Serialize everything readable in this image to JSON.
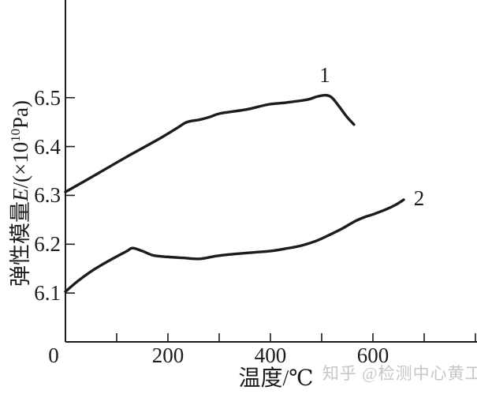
{
  "watermark": "知乎 @检测中心黄工",
  "line_color": "#1c1c1c",
  "watermark_color": "#c6c6c6",
  "chart_data": {
    "type": "line",
    "title": "",
    "xlabel": "温度/℃",
    "ylabel": "弹性模量E/(×10¹⁰Pa)",
    "ylabel_parts": {
      "prefix": "弹性模量",
      "variable": "E",
      "mid": "/(×10",
      "sup": "10",
      "suffix": "Pa)"
    },
    "xlim": [
      0,
      800
    ],
    "ylim": [
      6.0,
      6.7
    ],
    "grid": false,
    "legend": "inline numeric labels at curve ends",
    "x_tick_marks": [
      100,
      200,
      300,
      400,
      500,
      600,
      700,
      800
    ],
    "x_tick_labels": [
      {
        "value": 0,
        "label": "0"
      },
      {
        "value": 200,
        "label": "200"
      },
      {
        "value": 400,
        "label": "400"
      },
      {
        "value": 600,
        "label": "600"
      }
    ],
    "y_ticks": [
      {
        "value": 6.1,
        "label": "6.1"
      },
      {
        "value": 6.2,
        "label": "6.2"
      },
      {
        "value": 6.3,
        "label": "6.3"
      },
      {
        "value": 6.4,
        "label": "6.4"
      },
      {
        "value": 6.5,
        "label": "6.5"
      }
    ],
    "series": [
      {
        "name": "1",
        "label_x": 506,
        "label_y": 6.547,
        "points": [
          [
            0,
            6.307
          ],
          [
            57,
            6.341
          ],
          [
            118,
            6.378
          ],
          [
            180,
            6.414
          ],
          [
            218,
            6.438
          ],
          [
            237,
            6.45
          ],
          [
            262,
            6.455
          ],
          [
            283,
            6.461
          ],
          [
            303,
            6.468
          ],
          [
            354,
            6.476
          ],
          [
            395,
            6.486
          ],
          [
            431,
            6.49
          ],
          [
            472,
            6.496
          ],
          [
            490,
            6.502
          ],
          [
            508,
            6.505
          ],
          [
            520,
            6.5
          ],
          [
            534,
            6.482
          ],
          [
            549,
            6.461
          ],
          [
            563,
            6.445
          ]
        ]
      },
      {
        "name": "2",
        "label_x": 690,
        "label_y": 6.295,
        "points": [
          [
            0,
            6.103
          ],
          [
            26,
            6.126
          ],
          [
            57,
            6.149
          ],
          [
            95,
            6.172
          ],
          [
            120,
            6.186
          ],
          [
            131,
            6.192
          ],
          [
            150,
            6.186
          ],
          [
            172,
            6.177
          ],
          [
            200,
            6.174
          ],
          [
            230,
            6.172
          ],
          [
            262,
            6.17
          ],
          [
            295,
            6.176
          ],
          [
            330,
            6.18
          ],
          [
            365,
            6.183
          ],
          [
            400,
            6.186
          ],
          [
            430,
            6.191
          ],
          [
            460,
            6.197
          ],
          [
            490,
            6.207
          ],
          [
            515,
            6.219
          ],
          [
            540,
            6.232
          ],
          [
            565,
            6.247
          ],
          [
            585,
            6.256
          ],
          [
            600,
            6.261
          ],
          [
            625,
            6.271
          ],
          [
            645,
            6.281
          ],
          [
            660,
            6.291
          ]
        ]
      }
    ]
  }
}
